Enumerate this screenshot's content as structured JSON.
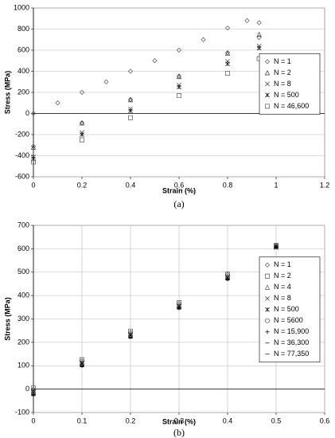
{
  "chart_data": [
    {
      "type": "scatter",
      "caption": "(a)",
      "x_label": "Strain (%)",
      "y_label": "Stress (MPa)",
      "xlim": [
        0,
        1.2
      ],
      "xticks": [
        0,
        0.2,
        0.4,
        0.6,
        0.8,
        1,
        1.2
      ],
      "ylim": [
        -600,
        1000
      ],
      "yticks": [
        -600,
        -400,
        -200,
        0,
        200,
        400,
        600,
        800,
        1000
      ],
      "grid": "y",
      "legend": "right",
      "series": [
        {
          "name": "N = 1",
          "color": "#555555",
          "marker": "diamond",
          "x": [
            0,
            0.1,
            0.2,
            0.3,
            0.4,
            0.5,
            0.6,
            0.7,
            0.8,
            0.88,
            0.93,
            0.93,
            0.8,
            0.6,
            0.4,
            0.2,
            0
          ],
          "values": [
            0,
            100,
            200,
            300,
            400,
            500,
            600,
            700,
            810,
            880,
            860,
            720,
            576,
            354,
            133,
            -88,
            -310
          ]
        },
        {
          "name": "N = 2",
          "color": "#333333",
          "marker": "triangle",
          "x": [
            0,
            0.2,
            0.4,
            0.6,
            0.8,
            0.93
          ],
          "values": [
            -320,
            -90,
            130,
            350,
            570,
            750
          ]
        },
        {
          "name": "N = 8",
          "color": "#333333",
          "marker": "x",
          "x": [
            0,
            0.2,
            0.4,
            0.6,
            0.8,
            0.93
          ],
          "values": [
            -410,
            -180,
            45,
            270,
            495,
            640
          ]
        },
        {
          "name": "N = 500",
          "color": "#000000",
          "marker": "star",
          "x": [
            0,
            0.2,
            0.4,
            0.6,
            0.8,
            0.93
          ],
          "values": [
            -430,
            -200,
            25,
            250,
            470,
            620
          ]
        },
        {
          "name": "N = 46,600",
          "color": "#555555",
          "marker": "square",
          "x": [
            0,
            0.2,
            0.4,
            0.6,
            0.8,
            0.93
          ],
          "values": [
            -460,
            -250,
            -40,
            170,
            380,
            520
          ]
        }
      ]
    },
    {
      "type": "scatter",
      "caption": "(b)",
      "x_label": "Strain (%)",
      "y_label": "Stress (MPa)",
      "xlim": [
        0,
        0.6
      ],
      "xticks": [
        0,
        0.1,
        0.2,
        0.3,
        0.4,
        0.5,
        0.6
      ],
      "ylim": [
        -100,
        700
      ],
      "yticks": [
        -100,
        0,
        100,
        200,
        300,
        400,
        500,
        600,
        700
      ],
      "grid": "both",
      "legend": "right",
      "series": [
        {
          "name": "N = 1",
          "color": "#555555",
          "marker": "diamond",
          "x": [
            0,
            0.1,
            0.2,
            0.3,
            0.4,
            0.5
          ],
          "values": [
            0,
            122,
            244,
            366,
            490,
            612
          ]
        },
        {
          "name": "N = 2",
          "color": "#555555",
          "marker": "square",
          "x": [
            0,
            0.1,
            0.2,
            0.3,
            0.4,
            0.5
          ],
          "values": [
            5,
            126,
            248,
            370,
            492,
            615
          ]
        },
        {
          "name": "N = 4",
          "color": "#555555",
          "marker": "triangle",
          "x": [
            0,
            0.1,
            0.2,
            0.3,
            0.4,
            0.5
          ],
          "values": [
            -5,
            116,
            238,
            360,
            484,
            608
          ]
        },
        {
          "name": "N = 8",
          "color": "#333333",
          "marker": "x",
          "x": [
            0,
            0.1,
            0.2,
            0.3,
            0.4,
            0.5
          ],
          "values": [
            -10,
            112,
            234,
            356,
            480,
            605
          ]
        },
        {
          "name": "N = 500",
          "color": "#000000",
          "marker": "star",
          "x": [
            0,
            0.1,
            0.2,
            0.3,
            0.4,
            0.5
          ],
          "values": [
            -15,
            108,
            230,
            352,
            476,
            610
          ]
        },
        {
          "name": "N = 5600",
          "color": "#555555",
          "marker": "circle",
          "x": [
            0,
            0.1,
            0.2,
            0.3,
            0.4,
            0.5
          ],
          "values": [
            -20,
            104,
            226,
            350,
            474,
            612
          ]
        },
        {
          "name": "N = 15,900",
          "color": "#000000",
          "marker": "plus",
          "x": [
            0,
            0.1,
            0.2,
            0.3,
            0.4,
            0.5
          ],
          "values": [
            -22,
            100,
            222,
            346,
            470,
            608
          ]
        },
        {
          "name": "N = 36,300",
          "color": "#000000",
          "marker": "dash",
          "x": [
            0,
            0.1,
            0.2,
            0.3,
            0.4,
            0.5
          ],
          "values": [
            -25,
            98,
            220,
            344,
            468,
            606
          ]
        },
        {
          "name": "N = 77,350",
          "color": "#000000",
          "marker": "dash",
          "x": [
            0,
            0.1,
            0.2,
            0.3,
            0.4,
            0.5
          ],
          "values": [
            -28,
            95,
            218,
            342,
            466,
            604
          ]
        }
      ]
    }
  ]
}
